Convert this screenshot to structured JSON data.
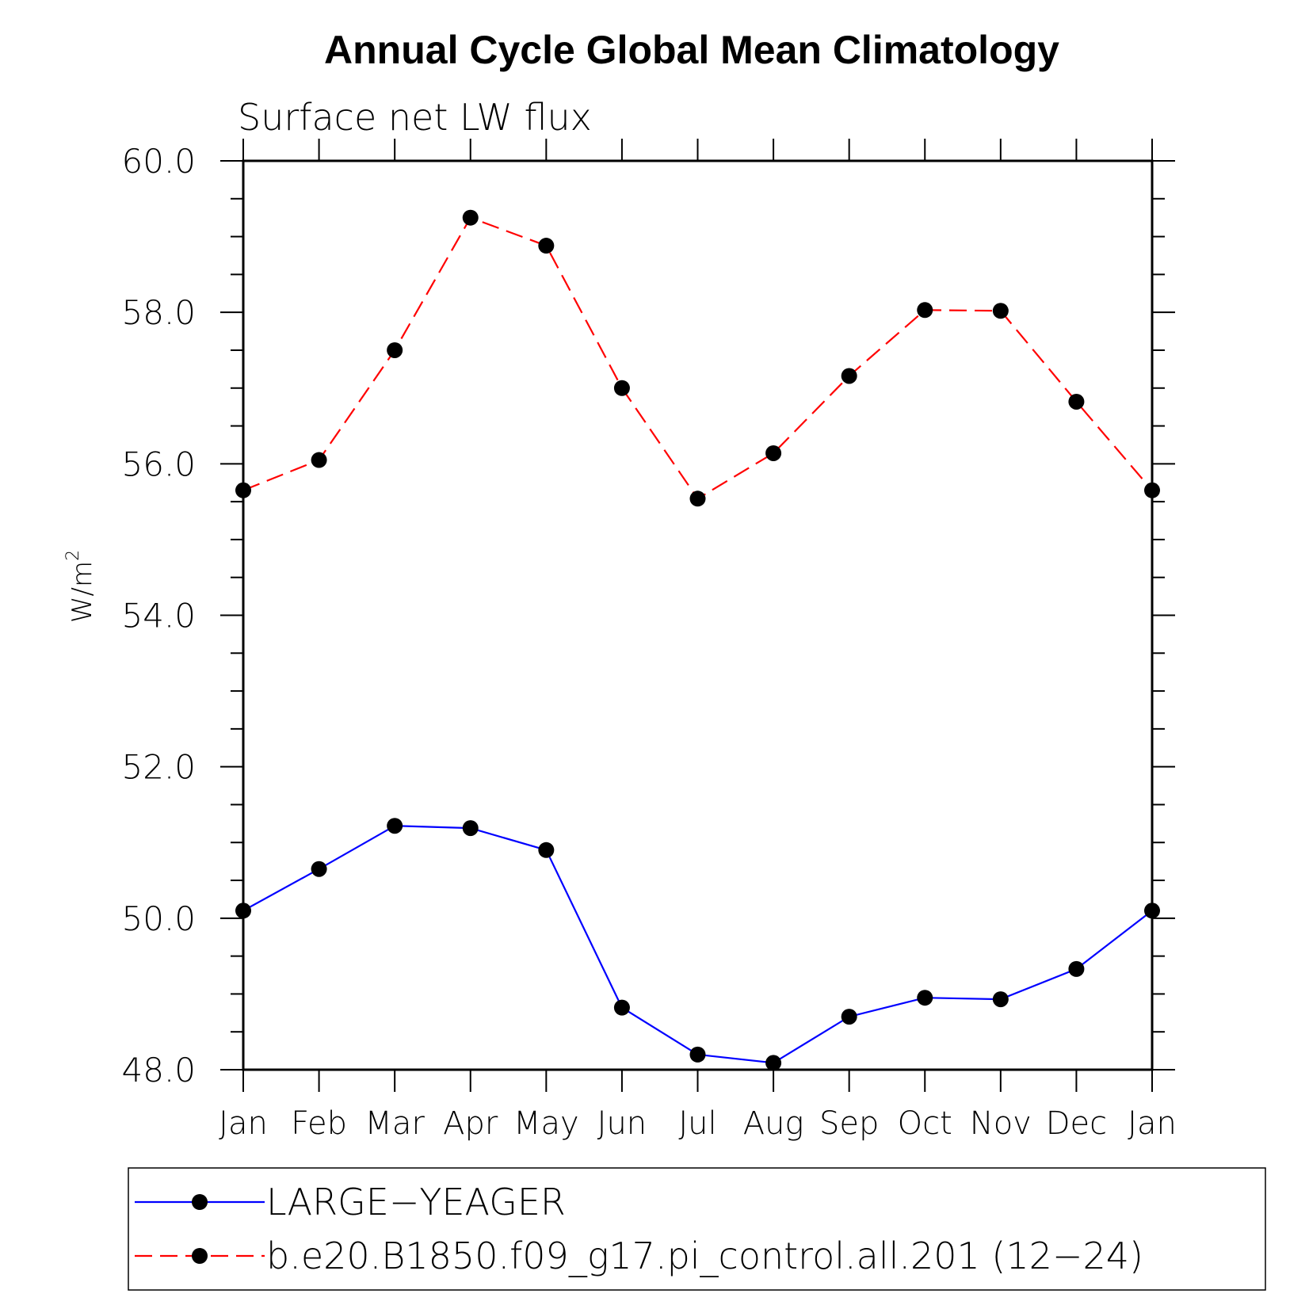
{
  "chart_data": {
    "type": "line",
    "title": "Annual Cycle Global Mean Climatology",
    "subtitle": "Surface net LW flux",
    "ylabel": "W/m",
    "ylabel_superscript": "2",
    "xlabel": "",
    "ylim": [
      48.0,
      60.0
    ],
    "yticks": [
      "60.0",
      "58.0",
      "56.0",
      "54.0",
      "52.0",
      "50.0",
      "48.0"
    ],
    "ytick_values": [
      60,
      58,
      56,
      54,
      52,
      50,
      48
    ],
    "categories": [
      "Jan",
      "Feb",
      "Mar",
      "Apr",
      "May",
      "Jun",
      "Jul",
      "Aug",
      "Sep",
      "Oct",
      "Nov",
      "Dec",
      "Jan"
    ],
    "grid": false,
    "legend_position": "bottom",
    "series": [
      {
        "name": "LARGE−YEAGER",
        "color": "#0000ff",
        "dash": "solid",
        "values": [
          50.1,
          50.65,
          51.22,
          51.19,
          50.9,
          48.82,
          48.2,
          48.09,
          48.7,
          48.95,
          48.93,
          49.33,
          50.1
        ]
      },
      {
        "name": "b.e20.B1850.f09_g17.pi_control.all.201 (12−24)",
        "color": "#ff0000",
        "dash": "dashed",
        "values": [
          55.65,
          56.05,
          57.5,
          59.25,
          58.88,
          57.0,
          55.54,
          56.14,
          57.16,
          58.03,
          58.02,
          56.82,
          55.65
        ]
      }
    ]
  }
}
